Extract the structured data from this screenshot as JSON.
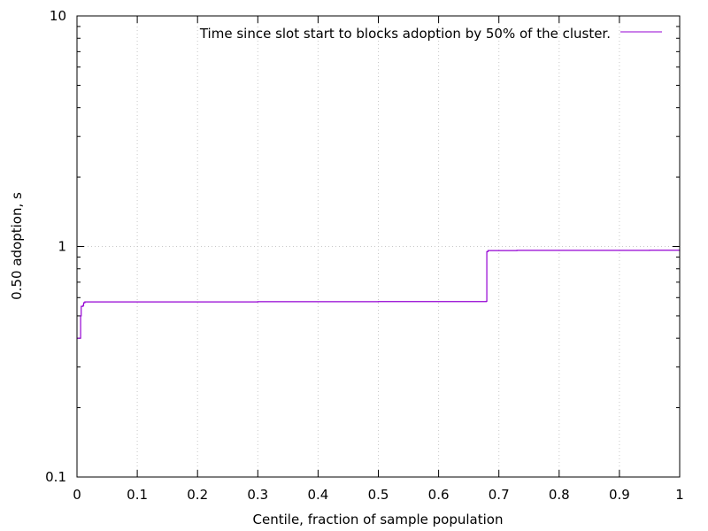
{
  "chart_data": {
    "type": "line",
    "title": "",
    "xlabel": "Centile, fraction of sample population",
    "ylabel": "0.50 adoption, s",
    "xlim": [
      0,
      1
    ],
    "ylim": [
      0.1,
      10
    ],
    "y_scale": "log",
    "x_ticks": [
      "0",
      "0.1",
      "0.2",
      "0.3",
      "0.4",
      "0.5",
      "0.6",
      "0.7",
      "0.8",
      "0.9",
      "1"
    ],
    "x_tick_values": [
      0,
      0.1,
      0.2,
      0.3,
      0.4,
      0.5,
      0.6,
      0.7,
      0.8,
      0.9,
      1
    ],
    "y_ticks": [
      "0.1",
      "1",
      "10"
    ],
    "y_tick_values": [
      0.1,
      1,
      10
    ],
    "grid": true,
    "legend_position": "top-right",
    "series": [
      {
        "name": "Time since slot start to blocks adoption by 50% of the cluster.",
        "color": "#9400d3",
        "points": [
          [
            0.0,
            0.4
          ],
          [
            0.005,
            0.4
          ],
          [
            0.006,
            0.5
          ],
          [
            0.007,
            0.55
          ],
          [
            0.01,
            0.555
          ],
          [
            0.011,
            0.57
          ],
          [
            0.013,
            0.575
          ],
          [
            0.1,
            0.575
          ],
          [
            0.3,
            0.576
          ],
          [
            0.5,
            0.577
          ],
          [
            0.679,
            0.578
          ],
          [
            0.68,
            0.95
          ],
          [
            0.682,
            0.96
          ],
          [
            0.73,
            0.962
          ],
          [
            0.95,
            0.963
          ],
          [
            1.0,
            0.965
          ]
        ]
      }
    ]
  }
}
